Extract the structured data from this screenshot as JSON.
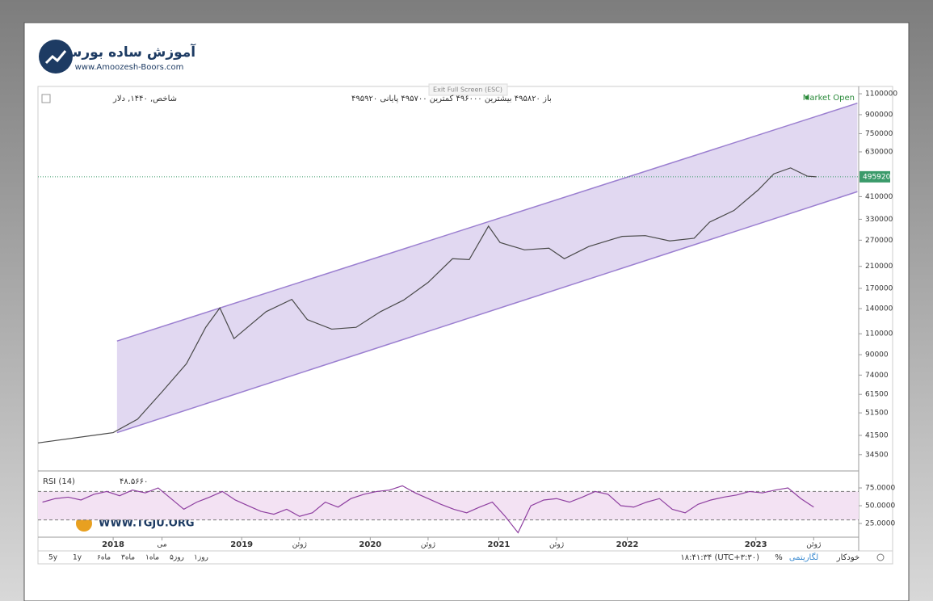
{
  "logo": {
    "title": "آموزش ساده بورس",
    "url": "www.Amoozesh-Boors.com"
  },
  "watermark": "WWW.TGJU.ORG",
  "exit_button": "Exit Full Screen (ESC)",
  "status": "Market Open",
  "header": {
    "symbol": "شاخص, ۱۴۴۰, دلار",
    "ohlc": "باز ۴۹۵۸۲۰ بیشترین ۴۹۶۰۰۰ کمترین ۴۹۵۷۰۰ پایانی ۴۹۵۹۲۰"
  },
  "toolbar": {
    "ranges": [
      "5y",
      "1y",
      "۶ماه",
      "۳ماه",
      "۱ماه",
      "۵روز",
      "۱روز"
    ],
    "time": "۱۸:۴۱:۳۴ (UTC+۳:۳۰)",
    "percent": "%",
    "log": "لگاریتمی",
    "auto": "خودکار"
  },
  "chart_data": [
    {
      "type": "line",
      "color": "#4a4a4a",
      "log_scale": true,
      "x": [
        2017.415,
        2018.0,
        2018.19,
        2018.38,
        2018.57,
        2018.72,
        2018.83,
        2018.94,
        2019.19,
        2019.39,
        2019.51,
        2019.7,
        2019.89,
        2020.08,
        2020.26,
        2020.45,
        2020.64,
        2020.77,
        2020.92,
        2021.01,
        2021.2,
        2021.39,
        2021.51,
        2021.7,
        2021.96,
        2022.14,
        2022.33,
        2022.52,
        2022.64,
        2022.83,
        2023.02,
        2023.14,
        2023.27,
        2023.4,
        2023.47
      ],
      "values": [
        38600,
        42600,
        48500,
        63000,
        82500,
        117000,
        141000,
        105000,
        136000,
        153000,
        126000,
        115000,
        117000,
        136000,
        152000,
        180000,
        226000,
        224000,
        309000,
        264000,
        246000,
        250000,
        226000,
        254000,
        280000,
        282000,
        268000,
        275000,
        321000,
        359000,
        438000,
        510000,
        540000,
        499000,
        495920
      ],
      "last_price": 495920,
      "channel": {
        "x": [
          2018.03,
          2023.79
        ],
        "upper": [
          102600,
          1005000
        ],
        "lower": [
          42600,
          430000
        ],
        "color": "#9b7fd0"
      },
      "xlim": [
        2017.415,
        2023.8
      ],
      "xticks": [
        2018,
        {
          "value": 2018.38,
          "label": "می"
        },
        2019,
        {
          "value": 2019.45,
          "label": "ژوئن"
        },
        2020,
        {
          "value": 2020.45,
          "label": "ژوئن"
        },
        2021,
        {
          "value": 2021.45,
          "label": "ژوئن"
        },
        2022,
        2023,
        {
          "value": 2023.45,
          "label": "ژوئن"
        }
      ],
      "ylim": [
        29500,
        1180000
      ],
      "yticks": [
        1100000,
        900000,
        750000,
        630000,
        410000,
        330000,
        270000,
        210000,
        170000,
        140000,
        110000,
        90000,
        74000,
        61500,
        51500,
        41500,
        34500
      ]
    },
    {
      "type": "line",
      "title": "RSI (14)",
      "value_label": "۴۸.۵۶۶۰",
      "color": "#8e3fa0",
      "x": [
        2017.45,
        2017.55,
        2017.65,
        2017.75,
        2017.85,
        2017.95,
        2018.05,
        2018.15,
        2018.25,
        2018.35,
        2018.45,
        2018.55,
        2018.65,
        2018.75,
        2018.85,
        2018.95,
        2019.05,
        2019.15,
        2019.25,
        2019.35,
        2019.45,
        2019.55,
        2019.65,
        2019.75,
        2019.85,
        2019.95,
        2020.05,
        2020.15,
        2020.25,
        2020.35,
        2020.45,
        2020.55,
        2020.65,
        2020.75,
        2020.85,
        2020.95,
        2021.05,
        2021.15,
        2021.25,
        2021.35,
        2021.45,
        2021.55,
        2021.65,
        2021.75,
        2021.85,
        2021.95,
        2022.05,
        2022.15,
        2022.25,
        2022.35,
        2022.45,
        2022.55,
        2022.65,
        2022.75,
        2022.85,
        2022.95,
        2023.05,
        2023.15,
        2023.25,
        2023.35,
        2023.45
      ],
      "values": [
        55,
        60,
        62,
        58,
        66,
        70,
        64,
        72,
        68,
        75,
        60,
        45,
        55,
        62,
        70,
        58,
        50,
        42,
        38,
        45,
        35,
        40,
        55,
        48,
        60,
        66,
        70,
        72,
        78,
        68,
        60,
        52,
        45,
        40,
        48,
        55,
        35,
        12,
        50,
        58,
        60,
        55,
        62,
        70,
        66,
        50,
        48,
        55,
        60,
        45,
        40,
        52,
        58,
        62,
        65,
        70,
        68,
        72,
        75,
        60,
        48
      ],
      "bands": [
        30,
        70
      ],
      "xlim": [
        2017.415,
        2023.8
      ],
      "ylim": [
        5.7,
        98.9
      ],
      "yticks": [
        {
          "value": 75,
          "label": "75.0000"
        },
        {
          "value": 50,
          "label": "50.0000"
        },
        {
          "value": 25,
          "label": "25.0000"
        }
      ]
    }
  ]
}
